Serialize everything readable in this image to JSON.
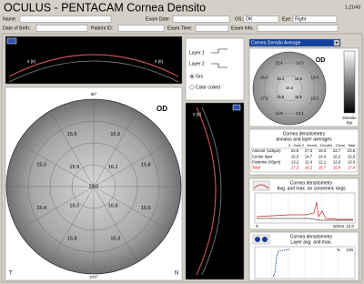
{
  "header": {
    "title": "OCULUS - PENTACAM  Cornea Densito",
    "version": "1.21r43"
  },
  "patient": {
    "name_label": "Name:",
    "exam_date_label": "Exam Date:",
    "os_label": "OS:",
    "os_value": "OK",
    "eye_label": "Eye:",
    "eye_value": "Right",
    "dob_label": "Date of Birth:",
    "patient_id_label": "Patient ID:",
    "exam_time_label": "Exam Time:",
    "exam_info_label": "Exam Info:"
  },
  "scheimpflug_top": {
    "left_label": "0 [0]",
    "right_label": "0 [0]"
  },
  "scheimpflug_side": {
    "label": "0 [0]"
  },
  "main_map": {
    "eye": "OD",
    "top_label": "90°",
    "bottom_label": "270°",
    "temporal": "T",
    "nasal": "N",
    "values": [
      "22.0",
      "16.1",
      "15.9",
      "16.0",
      "16.8",
      "15.8",
      "15.9",
      "15.6",
      "15.0",
      "15.4",
      "15.8",
      "16.3",
      "15.6"
    ]
  },
  "controls": {
    "layer1": "Layer 1",
    "layer2": "Layer 2",
    "gray": "Grs",
    "color": "Color coded"
  },
  "small_map": {
    "dropdown": "Cornea Densito Average",
    "eye": "OD",
    "scale_title": "Densito",
    "scale_unit": "Rel",
    "values": [
      "15.3",
      "14.5",
      "15.1",
      "15.8",
      "15.5",
      "13.8",
      "14.5",
      "15.4",
      "16.0",
      "17.0",
      "14.9",
      "13.1",
      "13.5"
    ]
  },
  "table": {
    "title": "Cornea densitometry",
    "subtitle": "annulus and layer averages",
    "columns": [
      "0 - 2mm",
      "2 - 6mm",
      "6 - 10mm",
      "10 - 12mm",
      "Total"
    ],
    "rows": [
      [
        "Anterior (120µm)",
        "22.9",
        "27.3",
        "19.3",
        "22.7",
        "23.5"
      ],
      [
        "Center layer",
        "15.5",
        "14.7",
        "14.4",
        "15.2",
        "15.6"
      ],
      [
        "Posterior (60µm)",
        "13.2",
        "12.4",
        "12.1",
        "12.9",
        "13.0"
      ],
      [
        "Total",
        "17.3",
        "16.2",
        "15.7",
        "15.9",
        "17.0"
      ]
    ]
  },
  "ring_graph": {
    "title": "Cornea densitometry",
    "subtitle": "Avg. and max. on concentric rings",
    "x_start": "0",
    "x_end": "10mm",
    "x_value": "12.0"
  },
  "layer_graph": {
    "title": "Cornea densitometry",
    "subtitle": "Layer avg. and max.",
    "x_unit": "%",
    "x_end": "100"
  }
}
